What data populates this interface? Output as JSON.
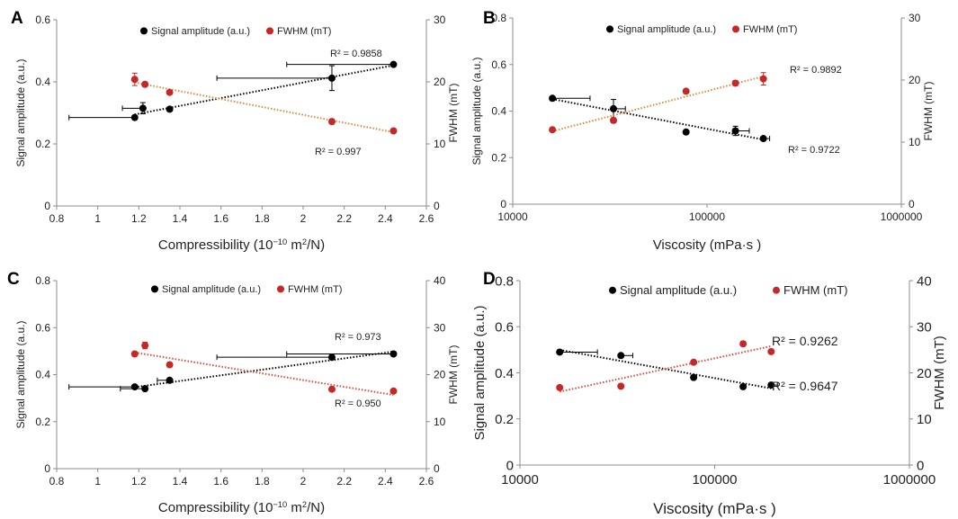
{
  "chart_data": [
    {
      "panel": "A",
      "type": "scatter",
      "xscale": "linear",
      "xlim": [
        0.8,
        2.6
      ],
      "xticks": [
        0.8,
        1,
        1.2,
        1.4,
        1.6,
        1.8,
        2,
        2.2,
        2.4,
        2.6
      ],
      "xtick_labels": [
        "0.8",
        "1",
        "1.2",
        "1.4",
        "1.6",
        "1.8",
        "2",
        "2.2",
        "2.4",
        "2.6"
      ],
      "xlabel_main": "Compressibility (",
      "xlabel_unit_base": "10",
      "xlabel_unit_exp": "−10",
      "xlabel_unit_rest": " m",
      "xlabel_unit_sq": "2",
      "xlabel_unit_tail": "/N)",
      "ylabel_left": "Signal amplitude (a.u.)",
      "ylim_left": [
        0,
        0.6
      ],
      "yticks_left": [
        "0",
        "0.2",
        "0.4",
        "0.6"
      ],
      "ylabel_right": "FWHM (mT)",
      "ylim_right": [
        0,
        30
      ],
      "yticks_right": [
        "0",
        "10",
        "20",
        "30"
      ],
      "legend_position": "top-center",
      "series": [
        {
          "name": "Signal amplitude (a.u.)",
          "axis": "left",
          "color": "#000000",
          "trend_color": "#000000",
          "points": [
            {
              "x": 1.18,
              "y": 0.285,
              "xerr_minus": 0.32,
              "xerr_plus": 0,
              "yerr": 0.006
            },
            {
              "x": 1.22,
              "y": 0.315,
              "xerr_minus": 0.1,
              "xerr_plus": 0,
              "yerr": 0.018
            },
            {
              "x": 1.35,
              "y": 0.312,
              "xerr_minus": 0,
              "xerr_plus": 0,
              "yerr": 0
            },
            {
              "x": 2.14,
              "y": 0.412,
              "xerr_minus": 0.56,
              "xerr_plus": 0,
              "yerr": 0.04
            },
            {
              "x": 2.44,
              "y": 0.456,
              "xerr_minus": 0.52,
              "xerr_plus": 0,
              "yerr": 0
            }
          ],
          "r2": "R² = 0.9858"
        },
        {
          "name": "FWHM (mT)",
          "axis": "right",
          "color": "#c62828",
          "trend_color": "#d98a3c",
          "points": [
            {
              "x": 1.18,
              "y": 20.4,
              "xerr_minus": 0,
              "xerr_plus": 0,
              "yerr": 1.0
            },
            {
              "x": 1.23,
              "y": 19.6,
              "xerr_minus": 0,
              "xerr_plus": 0,
              "yerr": 0.3
            },
            {
              "x": 1.35,
              "y": 18.3,
              "xerr_minus": 0,
              "xerr_plus": 0,
              "yerr": 0
            },
            {
              "x": 2.14,
              "y": 13.6,
              "xerr_minus": 0,
              "xerr_plus": 0,
              "yerr": 0.4
            },
            {
              "x": 2.44,
              "y": 12.1,
              "xerr_minus": 0,
              "xerr_plus": 0,
              "yerr": 0
            }
          ],
          "r2": "R² = 0.997"
        }
      ]
    },
    {
      "panel": "B",
      "type": "scatter",
      "xscale": "log",
      "xlim": [
        10000,
        1000000
      ],
      "xticks": [
        10000,
        100000,
        1000000
      ],
      "xtick_labels": [
        "10000",
        "100000",
        "1000000"
      ],
      "xlabel_main": "Viscosity (mPa·s )",
      "ylabel_left": "Signal amplitude (a.u.)",
      "ylim_left": [
        0,
        0.8
      ],
      "yticks_left": [
        "0",
        "0.2",
        "0.4",
        "0.6",
        "0.8"
      ],
      "ylabel_right": "FWHM (mT)",
      "ylim_right": [
        0,
        30
      ],
      "yticks_right": [
        "0",
        "10",
        "20",
        "30"
      ],
      "legend_position": "top-center",
      "series": [
        {
          "name": "Signal amplitude (a.u.)",
          "axis": "left",
          "color": "#000000",
          "trend_color": "#000000",
          "points": [
            {
              "x": 16000,
              "y": 0.455,
              "xerr_minus": 0,
              "xerr_plus": 9000,
              "yerr": 0
            },
            {
              "x": 33000,
              "y": 0.41,
              "xerr_minus": 0,
              "xerr_plus": 5000,
              "yerr": 0.04
            },
            {
              "x": 78000,
              "y": 0.31,
              "xerr_minus": 0,
              "xerr_plus": 0,
              "yerr": 0
            },
            {
              "x": 140000,
              "y": 0.315,
              "xerr_minus": 0,
              "xerr_plus": 25000,
              "yerr": 0.02
            },
            {
              "x": 195000,
              "y": 0.282,
              "xerr_minus": 0,
              "xerr_plus": 15000,
              "yerr": 0
            }
          ],
          "r2": "R² = 0.9722"
        },
        {
          "name": "FWHM (mT)",
          "axis": "right",
          "color": "#c62828",
          "trend_color": "#d98a3c",
          "points": [
            {
              "x": 16000,
              "y": 12.0,
              "xerr_minus": 0,
              "xerr_plus": 0,
              "yerr": 0
            },
            {
              "x": 33000,
              "y": 13.5,
              "xerr_minus": 0,
              "xerr_plus": 0,
              "yerr": 0.4
            },
            {
              "x": 78000,
              "y": 18.2,
              "xerr_minus": 0,
              "xerr_plus": 0,
              "yerr": 0
            },
            {
              "x": 140000,
              "y": 19.5,
              "xerr_minus": 0,
              "xerr_plus": 0,
              "yerr": 0.4
            },
            {
              "x": 195000,
              "y": 20.2,
              "xerr_minus": 0,
              "xerr_plus": 0,
              "yerr": 1.0
            }
          ],
          "r2": "R² = 0.9892"
        }
      ]
    },
    {
      "panel": "C",
      "type": "scatter",
      "xscale": "linear",
      "xlim": [
        0.8,
        2.6
      ],
      "xticks": [
        0.8,
        1,
        1.2,
        1.4,
        1.6,
        1.8,
        2,
        2.2,
        2.4,
        2.6
      ],
      "xtick_labels": [
        "0.8",
        "1",
        "1.2",
        "1.4",
        "1.6",
        "1.8",
        "2",
        "2.2",
        "2.4",
        "2.6"
      ],
      "xlabel_main": "Compressibility (",
      "xlabel_unit_base": "10",
      "xlabel_unit_exp": "−10",
      "xlabel_unit_rest": " m",
      "xlabel_unit_sq": "2",
      "xlabel_unit_tail": "/N)",
      "ylabel_left": "Signal amplitude (a.u.)",
      "ylim_left": [
        0,
        0.8
      ],
      "yticks_left": [
        "0",
        "0.2",
        "0.4",
        "0.6",
        "0.8"
      ],
      "ylabel_right": "FWHM (mT)",
      "ylim_right": [
        0,
        40
      ],
      "yticks_right": [
        "0",
        "10",
        "20",
        "30",
        "40"
      ],
      "legend_position": "top-center",
      "series": [
        {
          "name": "Signal amplitude (a.u.)",
          "axis": "left",
          "color": "#000000",
          "trend_color": "#000000",
          "points": [
            {
              "x": 1.18,
              "y": 0.348,
              "xerr_minus": 0.32,
              "xerr_plus": 0,
              "yerr": 0
            },
            {
              "x": 1.23,
              "y": 0.34,
              "xerr_minus": 0.12,
              "xerr_plus": 0,
              "yerr": 0
            },
            {
              "x": 1.35,
              "y": 0.376,
              "xerr_minus": 0.06,
              "xerr_plus": 0,
              "yerr": 0
            },
            {
              "x": 2.14,
              "y": 0.474,
              "xerr_minus": 0.56,
              "xerr_plus": 0,
              "yerr": 0
            },
            {
              "x": 2.44,
              "y": 0.488,
              "xerr_minus": 0.52,
              "xerr_plus": 0,
              "yerr": 0
            }
          ],
          "r2": "R² = 0.973"
        },
        {
          "name": "FWHM (mT)",
          "axis": "right",
          "color": "#c62828",
          "trend_color": "#d84a3c",
          "points": [
            {
              "x": 1.18,
              "y": 24.4,
              "xerr_minus": 0,
              "xerr_plus": 0,
              "yerr": 0
            },
            {
              "x": 1.23,
              "y": 26.2,
              "xerr_minus": 0,
              "xerr_plus": 0,
              "yerr": 0.7
            },
            {
              "x": 1.35,
              "y": 22.1,
              "xerr_minus": 0,
              "xerr_plus": 0,
              "yerr": 0.5
            },
            {
              "x": 2.14,
              "y": 16.9,
              "xerr_minus": 0,
              "xerr_plus": 0,
              "yerr": 0
            },
            {
              "x": 2.44,
              "y": 16.5,
              "xerr_minus": 0,
              "xerr_plus": 0,
              "yerr": 0
            }
          ],
          "r2": "R² = 0.950"
        }
      ]
    },
    {
      "panel": "D",
      "type": "scatter",
      "xscale": "log",
      "xlim": [
        10000,
        1000000
      ],
      "xticks": [
        10000,
        100000,
        1000000
      ],
      "xtick_labels": [
        "10000",
        "100000",
        "1000000"
      ],
      "xlabel_main": "Viscosity (mPa·s )",
      "ylabel_left": "Signal amplitude (a.u.)",
      "ylim_left": [
        0,
        0.8
      ],
      "yticks_left": [
        "0",
        "0.2",
        "0.4",
        "0.6",
        "0.8"
      ],
      "ylabel_right": "FWHM (mT)",
      "ylim_right": [
        0,
        40
      ],
      "yticks_right": [
        "0",
        "10",
        "20",
        "30",
        "40"
      ],
      "legend_position": "top-center",
      "series": [
        {
          "name": "Signal amplitude (a.u.)",
          "axis": "left",
          "color": "#000000",
          "trend_color": "#000000",
          "points": [
            {
              "x": 16000,
              "y": 0.49,
              "xerr_minus": 0,
              "xerr_plus": 9000,
              "yerr": 0
            },
            {
              "x": 33000,
              "y": 0.475,
              "xerr_minus": 0,
              "xerr_plus": 5000,
              "yerr": 0
            },
            {
              "x": 78000,
              "y": 0.38,
              "xerr_minus": 0,
              "xerr_plus": 0,
              "yerr": 0
            },
            {
              "x": 140000,
              "y": 0.34,
              "xerr_minus": 0,
              "xerr_plus": 0,
              "yerr": 0
            },
            {
              "x": 195000,
              "y": 0.347,
              "xerr_minus": 0,
              "xerr_plus": 15000,
              "yerr": 0
            }
          ],
          "r2": "R² = 0.9647"
        },
        {
          "name": "FWHM (mT)",
          "axis": "right",
          "color": "#c62828",
          "trend_color": "#d84a3c",
          "points": [
            {
              "x": 16000,
              "y": 16.8,
              "xerr_minus": 0,
              "xerr_plus": 0,
              "yerr": 0
            },
            {
              "x": 33000,
              "y": 17.1,
              "xerr_minus": 0,
              "xerr_plus": 0,
              "yerr": 0
            },
            {
              "x": 78000,
              "y": 22.3,
              "xerr_minus": 0,
              "xerr_plus": 0,
              "yerr": 0.4
            },
            {
              "x": 140000,
              "y": 26.3,
              "xerr_minus": 0,
              "xerr_plus": 0,
              "yerr": 0.5
            },
            {
              "x": 195000,
              "y": 24.6,
              "xerr_minus": 0,
              "xerr_plus": 0,
              "yerr": 0
            }
          ],
          "r2": "R² = 0.9262"
        }
      ]
    }
  ]
}
